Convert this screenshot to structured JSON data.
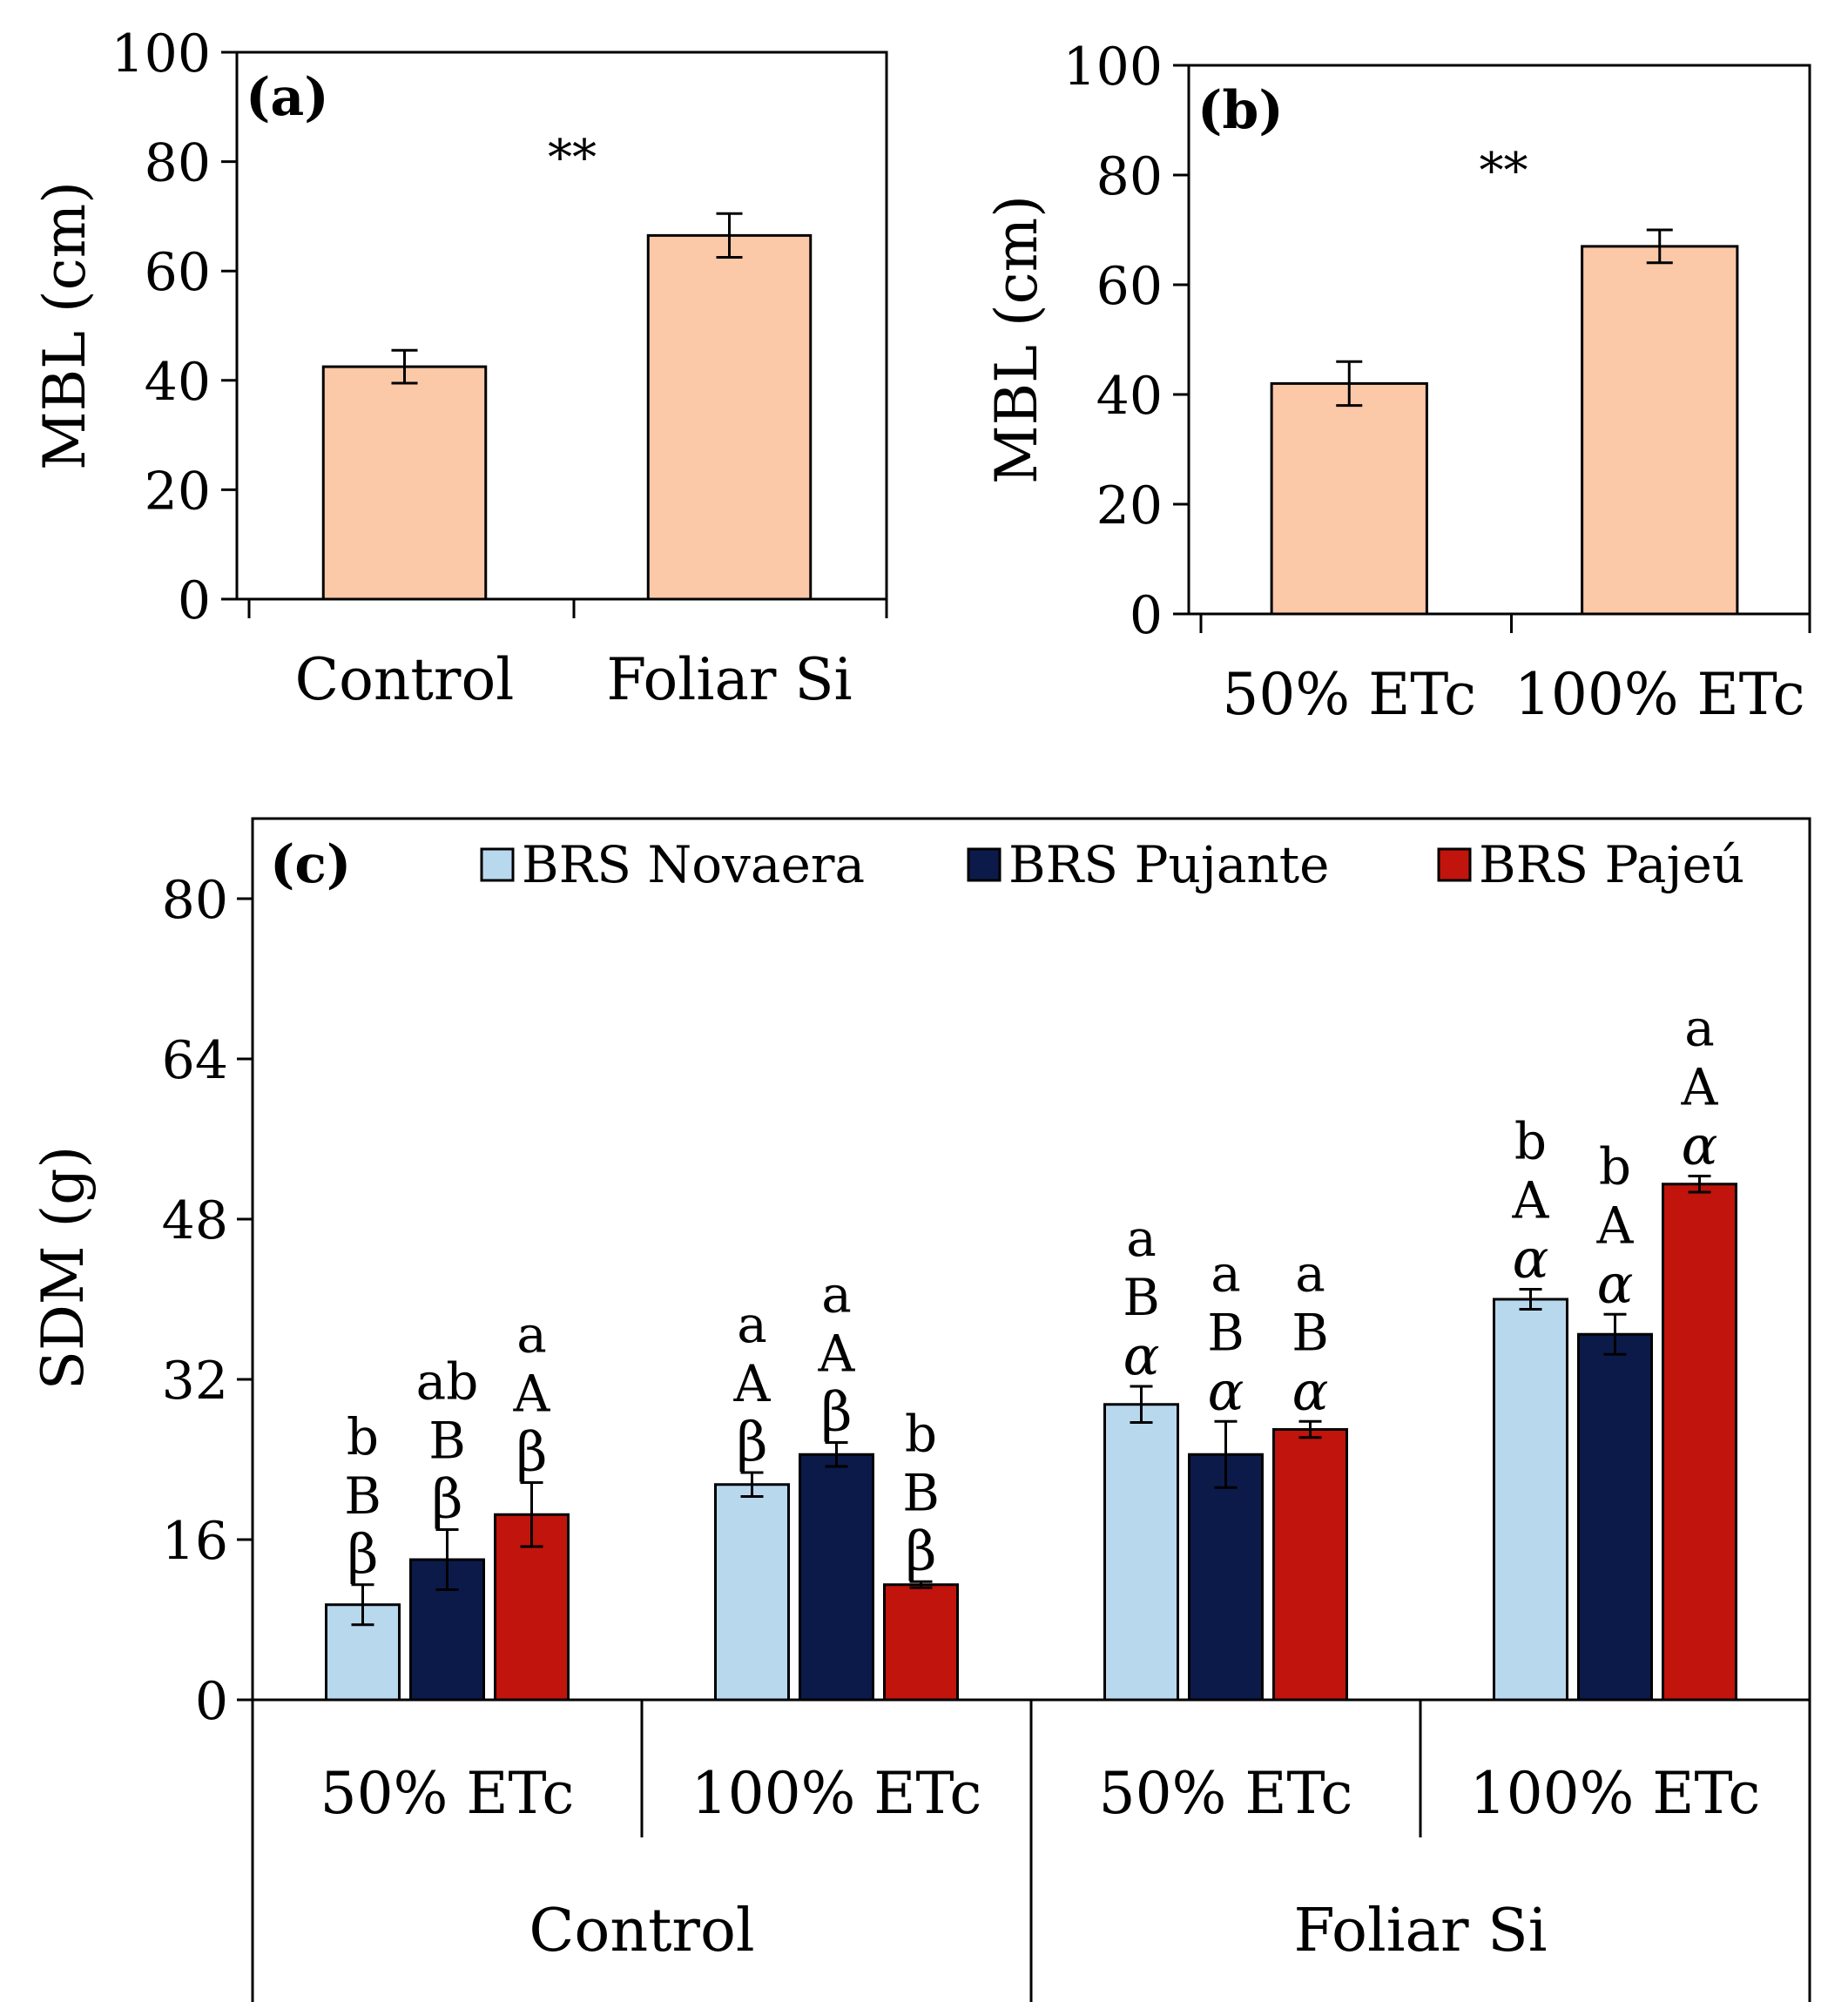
{
  "colors": {
    "bar_fill_ab": "#fbc8a8",
    "novaera": "#b8d8ee",
    "pujante": "#0c1a4a",
    "pajeu": "#c0140c",
    "stroke": "#000000"
  },
  "chart_data": [
    {
      "type": "bar",
      "panel_label": "(a)",
      "categories": [
        "Control",
        "Foliar Si"
      ],
      "values": [
        42.5,
        66.5
      ],
      "errors": [
        3.0,
        4.0
      ],
      "ylabel": "MBL (cm)",
      "ylim": [
        0,
        100
      ],
      "yticks": [
        "0",
        "20",
        "40",
        "60",
        "80",
        "100"
      ],
      "significance": "**"
    },
    {
      "type": "bar",
      "panel_label": "(b)",
      "categories": [
        "50% ETc",
        "100% ETc"
      ],
      "values": [
        42.0,
        67.0
      ],
      "errors": [
        4.0,
        3.0
      ],
      "ylabel": "MBL (cm)",
      "ylim": [
        0,
        100
      ],
      "yticks": [
        "0",
        "20",
        "40",
        "60",
        "80",
        "100"
      ],
      "significance": "**"
    },
    {
      "type": "bar",
      "panel_label": "(c)",
      "ylabel": "SDM (g)",
      "ylim": [
        0,
        88
      ],
      "yticks": [
        "0",
        "16",
        "32",
        "48",
        "64",
        "80"
      ],
      "groups": [
        {
          "treatment": "Control",
          "irrigations": [
            "50% ETc",
            "100% ETc"
          ]
        },
        {
          "treatment": "Foliar Si",
          "irrigations": [
            "50% ETc",
            "100% ETc"
          ]
        }
      ],
      "categories": [
        "50% ETc",
        "100% ETc",
        "50% ETc",
        "100% ETc"
      ],
      "series": [
        {
          "name": "BRS Novaera",
          "values": [
            9.5,
            21.5,
            29.5,
            40.0
          ],
          "errors": [
            2.0,
            1.2,
            1.8,
            1.0
          ],
          "letters": [
            [
              "b",
              "B",
              "β"
            ],
            [
              "a",
              "A",
              "β"
            ],
            [
              "a",
              "B",
              "α"
            ],
            [
              "b",
              "A",
              "α"
            ]
          ]
        },
        {
          "name": "BRS Pujante",
          "values": [
            14.0,
            24.5,
            24.5,
            36.5
          ],
          "errors": [
            3.0,
            1.2,
            3.3,
            2.0
          ],
          "letters": [
            [
              "ab",
              "B",
              "β"
            ],
            [
              "a",
              "A",
              "β"
            ],
            [
              "a",
              "B",
              "α"
            ],
            [
              "b",
              "A",
              "α"
            ]
          ]
        },
        {
          "name": "BRS Pajeú",
          "values": [
            18.5,
            11.5,
            27.0,
            51.5
          ],
          "errors": [
            3.2,
            0.3,
            0.8,
            0.8
          ],
          "letters": [
            [
              "a",
              "A",
              "β"
            ],
            [
              "b",
              "B",
              "β"
            ],
            [
              "a",
              "B",
              "α"
            ],
            [
              "a",
              "A",
              "α"
            ]
          ]
        }
      ]
    }
  ]
}
